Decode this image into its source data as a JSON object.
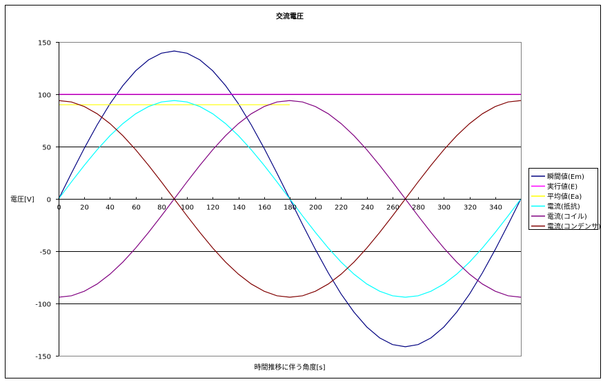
{
  "chart_data": {
    "type": "line",
    "title": "交流電圧",
    "xlabel": "時間推移に伴う角度[s]",
    "ylabel": "電圧[V]",
    "xlim": [
      0,
      360
    ],
    "ylim": [
      -150,
      150
    ],
    "xticks": [
      0,
      20,
      40,
      60,
      80,
      100,
      120,
      140,
      160,
      180,
      200,
      220,
      240,
      260,
      280,
      300,
      320,
      340
    ],
    "yticks": [
      150,
      100,
      50,
      0,
      -50,
      -100,
      -150
    ],
    "grid": "horizontal",
    "legend": "right",
    "x": [
      0,
      10,
      20,
      30,
      40,
      50,
      60,
      70,
      80,
      90,
      100,
      110,
      120,
      130,
      140,
      150,
      160,
      170,
      180,
      190,
      200,
      210,
      220,
      230,
      240,
      250,
      260,
      270,
      280,
      290,
      300,
      310,
      320,
      330,
      340,
      350,
      360
    ],
    "series": [
      {
        "name": "瞬間値(Em)",
        "color": "#000080",
        "values": [
          0,
          24.6,
          48.4,
          70.7,
          90.9,
          108.3,
          122.5,
          132.9,
          139.3,
          141.4,
          139.3,
          132.9,
          122.5,
          108.3,
          90.9,
          70.7,
          48.4,
          24.6,
          0,
          -24.6,
          -48.4,
          -70.7,
          -90.9,
          -108.3,
          -122.5,
          -132.9,
          -139.3,
          -141.4,
          -139.3,
          -132.9,
          -122.5,
          -108.3,
          -90.9,
          -70.7,
          -48.4,
          -24.6,
          0
        ]
      },
      {
        "name": "実行値(E)",
        "color": "#FF00FF",
        "values": [
          100,
          100,
          100,
          100,
          100,
          100,
          100,
          100,
          100,
          100,
          100,
          100,
          100,
          100,
          100,
          100,
          100,
          100,
          100,
          100,
          100,
          100,
          100,
          100,
          100,
          100,
          100,
          100,
          100,
          100,
          100,
          100,
          100,
          100,
          100,
          100,
          100
        ]
      },
      {
        "name": "平均値(Ea)",
        "color": "#FFFF00",
        "values": [
          90,
          90,
          90,
          90,
          90,
          90,
          90,
          90,
          90,
          90,
          90,
          90,
          90,
          90,
          90,
          90,
          90,
          90,
          90,
          null,
          null,
          null,
          null,
          null,
          null,
          null,
          null,
          null,
          null,
          null,
          null,
          null,
          null,
          null,
          null,
          null,
          null
        ]
      },
      {
        "name": "電流(抵抗)",
        "color": "#00FFFF",
        "values": [
          0,
          16.3,
          32.1,
          47,
          60.4,
          72,
          81.4,
          88.3,
          92.6,
          94,
          92.6,
          88.3,
          81.4,
          72,
          60.4,
          47,
          32.1,
          16.3,
          0,
          -16.3,
          -32.1,
          -47,
          -60.4,
          -72,
          -81.4,
          -88.3,
          -92.6,
          -94,
          -92.6,
          -88.3,
          -81.4,
          -72,
          -60.4,
          -47,
          -32.1,
          -16.3,
          0
        ]
      },
      {
        "name": "電流(コイル)",
        "color": "#800080",
        "values": [
          -94,
          -92.6,
          -88.3,
          -81.4,
          -72,
          -60.4,
          -47,
          -32.1,
          -16.3,
          0,
          16.3,
          32.1,
          47,
          60.4,
          72,
          81.4,
          88.3,
          92.6,
          94,
          92.6,
          88.3,
          81.4,
          72,
          60.4,
          47,
          32.1,
          16.3,
          0,
          -16.3,
          -32.1,
          -47,
          -60.4,
          -72,
          -81.4,
          -88.3,
          -92.6,
          -94
        ]
      },
      {
        "name": "電流(コンデンサ)",
        "color": "#800000",
        "values": [
          94,
          92.6,
          88.3,
          81.4,
          72,
          60.4,
          47,
          32.1,
          16.3,
          0,
          -16.3,
          -32.1,
          -47,
          -60.4,
          -72,
          -81.4,
          -88.3,
          -92.6,
          -94,
          -92.6,
          -88.3,
          -81.4,
          -72,
          -60.4,
          -47,
          -32.1,
          -16.3,
          0,
          16.3,
          32.1,
          47,
          60.4,
          72,
          81.4,
          88.3,
          92.6,
          94
        ]
      }
    ]
  }
}
